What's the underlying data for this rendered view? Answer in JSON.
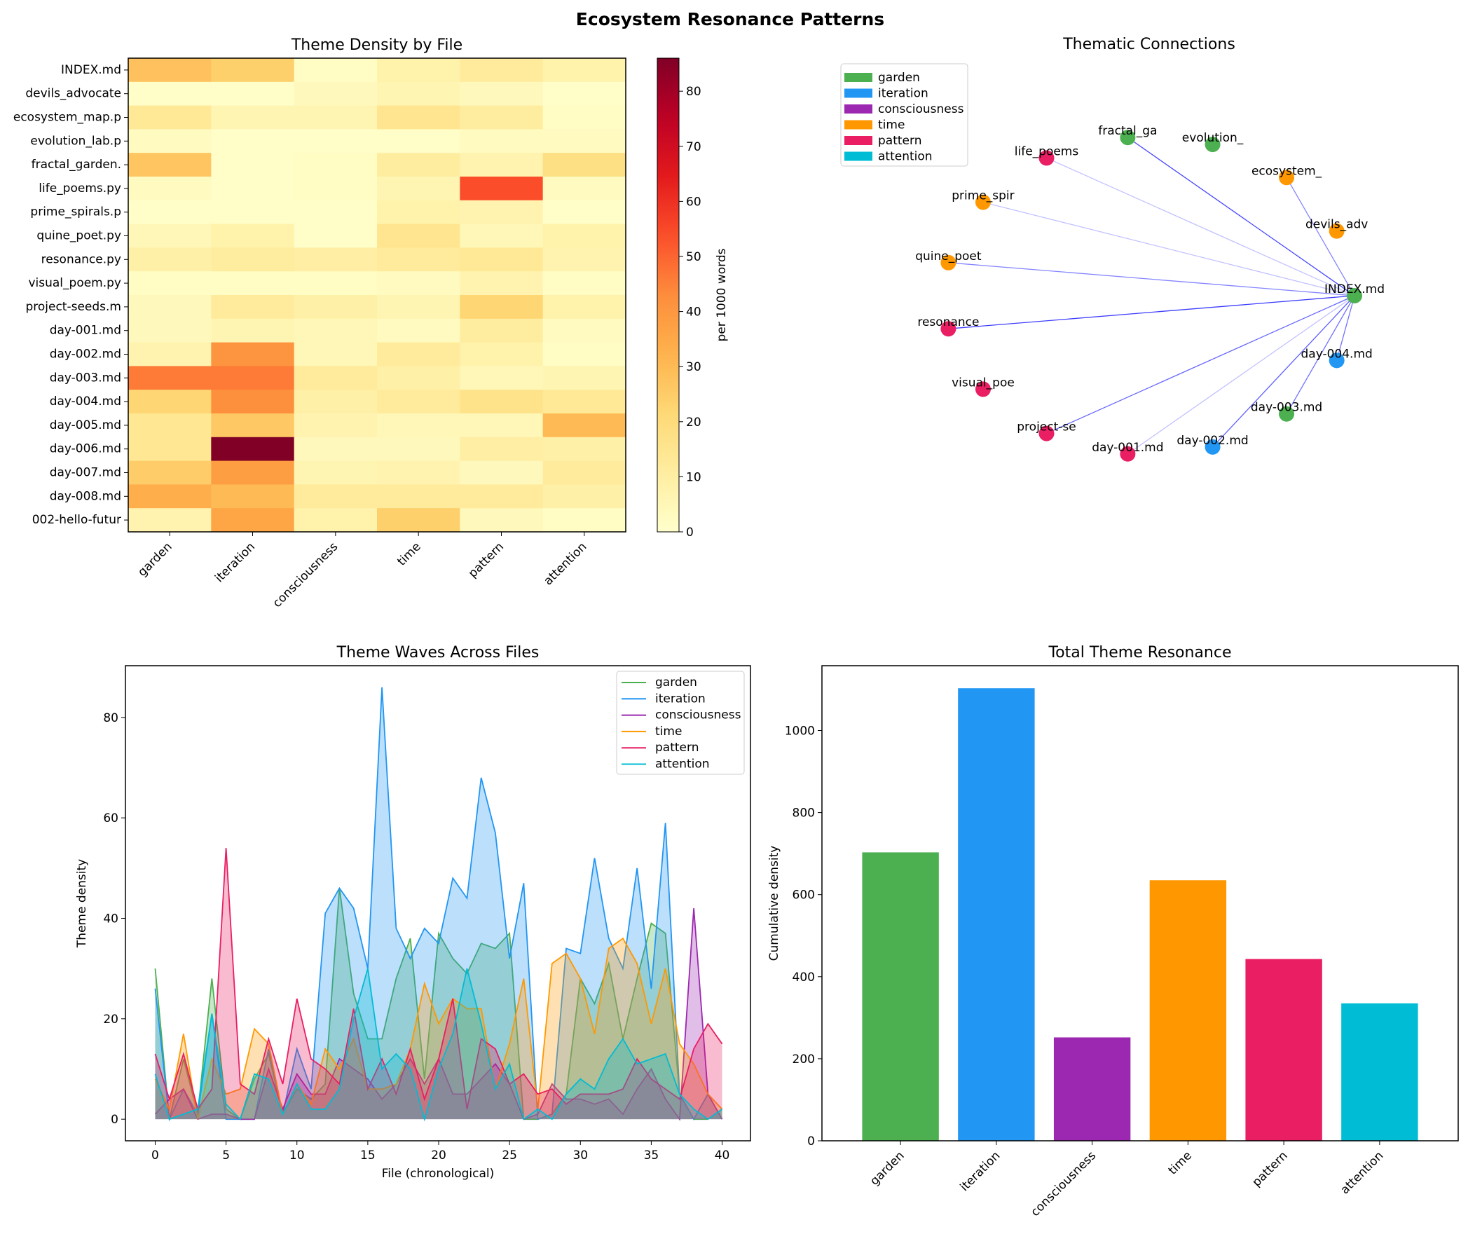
{
  "suptitle": "Ecosystem Resonance Patterns",
  "theme_colors": {
    "garden": "#4CAF50",
    "iteration": "#2196F3",
    "consciousness": "#9C27B0",
    "time": "#FF9800",
    "pattern": "#E91E63",
    "attention": "#00BCD4"
  },
  "chart_data": [
    {
      "type": "heatmap",
      "title": "Theme Density by File",
      "colormap": "YlOrRd",
      "colorbar_label": "per 1000 words",
      "colorbar_range": [
        0,
        86
      ],
      "colorbar_ticks": [
        "0",
        "10",
        "20",
        "30",
        "40",
        "50",
        "60",
        "70",
        "80"
      ],
      "columns": [
        "garden",
        "iteration",
        "consciousness",
        "time",
        "pattern",
        "attention"
      ],
      "rows": [
        "INDEX.md",
        "devils_advocate",
        "ecosystem_map.p",
        "evolution_lab.p",
        "fractal_garden.",
        "life_poems.py",
        "prime_spirals.p",
        "quine_poet.py",
        "resonance.py",
        "visual_poem.py",
        "project-seeds.m",
        "day-001.md",
        "day-002.md",
        "day-003.md",
        "day-004.md",
        "day-005.md",
        "day-006.md",
        "day-007.md",
        "day-008.md",
        "002-hello-futur"
      ],
      "values": [
        [
          28,
          24,
          2,
          8,
          12,
          8
        ],
        [
          1,
          1,
          4,
          6,
          4,
          1
        ],
        [
          13,
          6,
          6,
          15,
          11,
          2
        ],
        [
          3,
          1,
          1,
          1,
          3,
          3
        ],
        [
          27,
          1,
          2,
          11,
          7,
          18
        ],
        [
          3,
          1,
          2,
          6,
          54,
          3
        ],
        [
          1,
          1,
          1,
          8,
          7,
          1
        ],
        [
          5,
          8,
          1,
          15,
          5,
          8
        ],
        [
          9,
          11,
          10,
          12,
          13,
          7
        ],
        [
          2,
          2,
          2,
          3,
          7,
          2
        ],
        [
          4,
          12,
          9,
          6,
          22,
          8
        ],
        [
          4,
          6,
          5,
          3,
          11,
          3
        ],
        [
          7,
          41,
          5,
          12,
          8,
          2
        ],
        [
          46,
          46,
          12,
          9,
          5,
          6
        ],
        [
          22,
          42,
          9,
          12,
          16,
          13
        ],
        [
          14,
          26,
          7,
          5,
          5,
          30
        ],
        [
          14,
          86,
          4,
          4,
          10,
          9
        ],
        [
          25,
          38,
          6,
          7,
          4,
          12
        ],
        [
          33,
          30,
          12,
          12,
          12,
          9
        ],
        [
          7,
          36,
          8,
          24,
          4,
          2
        ]
      ]
    },
    {
      "type": "network",
      "title": "Thematic Connections",
      "legend": [
        "garden",
        "iteration",
        "consciousness",
        "time",
        "pattern",
        "attention"
      ],
      "legend_position": "top-left",
      "hub": "INDEX.md",
      "nodes": [
        {
          "label": "INDEX.md",
          "theme": "garden"
        },
        {
          "label": "devils_adv",
          "theme": "time"
        },
        {
          "label": "ecosystem_",
          "theme": "time"
        },
        {
          "label": "evolution_",
          "theme": "garden"
        },
        {
          "label": "fractal_ga",
          "theme": "garden"
        },
        {
          "label": "life_poems",
          "theme": "pattern"
        },
        {
          "label": "prime_spir",
          "theme": "time"
        },
        {
          "label": "quine_poet",
          "theme": "time"
        },
        {
          "label": "resonance",
          "theme": "pattern"
        },
        {
          "label": "visual_poe",
          "theme": "pattern"
        },
        {
          "label": "project-se",
          "theme": "pattern"
        },
        {
          "label": "day-001.md",
          "theme": "pattern"
        },
        {
          "label": "day-002.md",
          "theme": "iteration"
        },
        {
          "label": "day-003.md",
          "theme": "garden"
        },
        {
          "label": "day-004.md",
          "theme": "iteration"
        }
      ],
      "edges": [
        {
          "to": "fractal_ga",
          "strength": 0.9
        },
        {
          "to": "ecosystem_",
          "strength": 0.6
        },
        {
          "to": "life_poems",
          "strength": 0.3
        },
        {
          "to": "prime_spir",
          "strength": 0.3
        },
        {
          "to": "quine_poet",
          "strength": 0.6
        },
        {
          "to": "resonance",
          "strength": 0.95
        },
        {
          "to": "project-se",
          "strength": 0.75
        },
        {
          "to": "day-001.md",
          "strength": 0.3
        },
        {
          "to": "day-002.md",
          "strength": 0.8
        },
        {
          "to": "day-003.md",
          "strength": 0.7
        },
        {
          "to": "day-004.md",
          "strength": 0.7
        }
      ]
    },
    {
      "type": "area",
      "title": "Theme Waves Across Files",
      "xlabel": "File (chronological)",
      "ylabel": "Theme density",
      "xlim": [
        -2.1,
        42
      ],
      "ylim": [
        -4.3,
        90.3
      ],
      "xticks": [
        "0",
        "5",
        "10",
        "15",
        "20",
        "25",
        "30",
        "35",
        "40"
      ],
      "yticks": [
        "0",
        "20",
        "40",
        "60",
        "80"
      ],
      "legend_position": "top-right",
      "series": [
        {
          "name": "garden",
          "values": [
            30,
            0,
            12,
            1,
            28,
            2,
            0,
            8,
            13,
            1,
            6,
            4,
            7,
            46,
            25,
            16,
            16,
            28,
            36,
            8,
            37,
            32,
            29,
            35,
            34,
            37,
            0,
            0,
            1,
            5,
            28,
            23,
            31,
            16,
            28,
            39,
            37,
            5,
            0,
            0,
            2
          ]
        },
        {
          "name": "iteration",
          "values": [
            26,
            0,
            6,
            1,
            21,
            0,
            0,
            0,
            14,
            1,
            14,
            6,
            41,
            46,
            42,
            30,
            86,
            38,
            32,
            38,
            35,
            48,
            44,
            68,
            57,
            32,
            47,
            0,
            1,
            34,
            33,
            52,
            36,
            30,
            50,
            26,
            59,
            5,
            0,
            5,
            0
          ]
        },
        {
          "name": "consciousness",
          "values": [
            1,
            4,
            6,
            0,
            1,
            1,
            0,
            0,
            10,
            2,
            9,
            5,
            5,
            12,
            10,
            8,
            4,
            7,
            12,
            7,
            12,
            5,
            5,
            8,
            11,
            7,
            0,
            1,
            7,
            4,
            4,
            3,
            4,
            1,
            6,
            10,
            4,
            0,
            42,
            5,
            0
          ]
        },
        {
          "name": "time",
          "values": [
            8,
            2,
            17,
            0,
            12,
            5,
            6,
            18,
            15,
            1,
            7,
            3,
            14,
            10,
            16,
            6,
            6,
            7,
            14,
            27,
            19,
            24,
            22,
            22,
            6,
            15,
            28,
            2,
            31,
            33,
            28,
            17,
            34,
            36,
            31,
            19,
            30,
            15,
            11,
            5,
            2
          ]
        },
        {
          "name": "pattern",
          "values": [
            13,
            4,
            13,
            2,
            6,
            54,
            7,
            5,
            16,
            7,
            24,
            12,
            10,
            7,
            22,
            6,
            12,
            5,
            14,
            4,
            12,
            24,
            2,
            16,
            14,
            7,
            9,
            5,
            6,
            3,
            5,
            5,
            5,
            6,
            12,
            8,
            6,
            4,
            14,
            19,
            15
          ]
        },
        {
          "name": "attention",
          "values": [
            9,
            0,
            1,
            2,
            21,
            3,
            0,
            9,
            8,
            1,
            7,
            2,
            2,
            6,
            20,
            30,
            10,
            13,
            10,
            0,
            10,
            17,
            30,
            19,
            6,
            11,
            0,
            2,
            0,
            5,
            8,
            6,
            12,
            16,
            11,
            12,
            13,
            5,
            2,
            0,
            2
          ]
        }
      ]
    },
    {
      "type": "bar",
      "title": "Total Theme Resonance",
      "xlabel": "",
      "ylabel": "Cumulative density",
      "categories": [
        "garden",
        "iteration",
        "consciousness",
        "time",
        "pattern",
        "attention"
      ],
      "values": [
        703,
        1103,
        252,
        635,
        443,
        335
      ],
      "ylim": [
        0,
        1158
      ],
      "yticks": [
        "0",
        "200",
        "400",
        "600",
        "800",
        "1000"
      ]
    }
  ]
}
